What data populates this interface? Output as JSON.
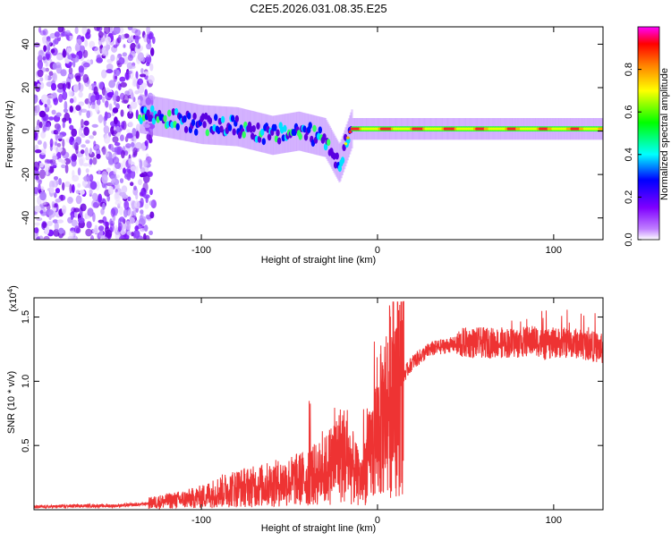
{
  "chart_data": [
    {
      "type": "heatmap",
      "title": "C2E5.2026.031.08.35.E25",
      "xlabel": "Height of straight line (km)",
      "ylabel": "Frequency (Hz)",
      "xlim": [
        -195,
        128
      ],
      "ylim": [
        -50,
        48
      ],
      "xticks": [
        -100,
        0,
        100
      ],
      "xtick_labels": [
        "-100",
        "0",
        "100"
      ],
      "yticks": [
        -40,
        -20,
        0,
        20,
        40
      ],
      "ytick_labels": [
        "-40",
        "-20",
        "0",
        "20",
        "40"
      ],
      "colorbar": {
        "label": "Normalized spectral amplitude",
        "range": [
          0,
          1
        ],
        "ticks": [
          0,
          0.2,
          0.4,
          0.6,
          0.8
        ],
        "tick_labels": [
          "0.0",
          "0.2",
          "0.4",
          "0.6",
          "0.8"
        ],
        "colors": [
          "#ffffff",
          "#8000ff",
          "#0000ff",
          "#00ffff",
          "#00ff00",
          "#ffff00",
          "#ff8000",
          "#ff0000",
          "#ff00ff"
        ]
      },
      "ridge": [
        {
          "x": -135,
          "f": 8
        },
        {
          "x": -120,
          "f": 6
        },
        {
          "x": -100,
          "f": 3
        },
        {
          "x": -80,
          "f": 2
        },
        {
          "x": -60,
          "f": -2
        },
        {
          "x": -45,
          "f": 0
        },
        {
          "x": -30,
          "f": -3
        },
        {
          "x": -22,
          "f": -15
        },
        {
          "x": -15,
          "f": 1
        },
        {
          "x": 0,
          "f": 1
        },
        {
          "x": 50,
          "f": 1
        },
        {
          "x": 100,
          "f": 1
        },
        {
          "x": 128,
          "f": 1
        }
      ],
      "noise_region": {
        "x_from": -195,
        "x_to": -135
      }
    },
    {
      "type": "line",
      "xlabel": "Height of straight line (km)",
      "ylabel": "SNR (10 * v/v)",
      "multiplier_label": "(x10",
      "multiplier_exponent": "4",
      "xlim": [
        -195,
        128
      ],
      "ylim": [
        0,
        1.65
      ],
      "xticks": [
        -100,
        0,
        100
      ],
      "xtick_labels": [
        "-100",
        "0",
        "100"
      ],
      "yticks": [
        0.5,
        1.0,
        1.5
      ],
      "ytick_labels": [
        "0.5",
        "1.0",
        "1.5"
      ],
      "series": [
        {
          "name": "SNR",
          "color": "#ee3333",
          "x": [
            -195,
            -170,
            -150,
            -135,
            -125,
            -110,
            -100,
            -90,
            -80,
            -70,
            -60,
            -50,
            -40,
            -30,
            -25,
            -20,
            -15,
            -10,
            -5,
            0,
            5,
            10,
            15,
            20,
            30,
            40,
            50,
            60,
            70,
            80,
            90,
            95,
            100,
            110,
            120,
            128
          ],
          "y": [
            0.02,
            0.03,
            0.03,
            0.04,
            0.06,
            0.08,
            0.1,
            0.14,
            0.17,
            0.18,
            0.2,
            0.22,
            0.25,
            0.3,
            0.38,
            0.45,
            0.35,
            0.22,
            0.4,
            0.6,
            0.8,
            0.95,
            1.05,
            1.15,
            1.25,
            1.28,
            1.3,
            1.3,
            1.3,
            1.3,
            1.32,
            1.28,
            1.3,
            1.3,
            1.28,
            1.25
          ]
        }
      ]
    }
  ]
}
